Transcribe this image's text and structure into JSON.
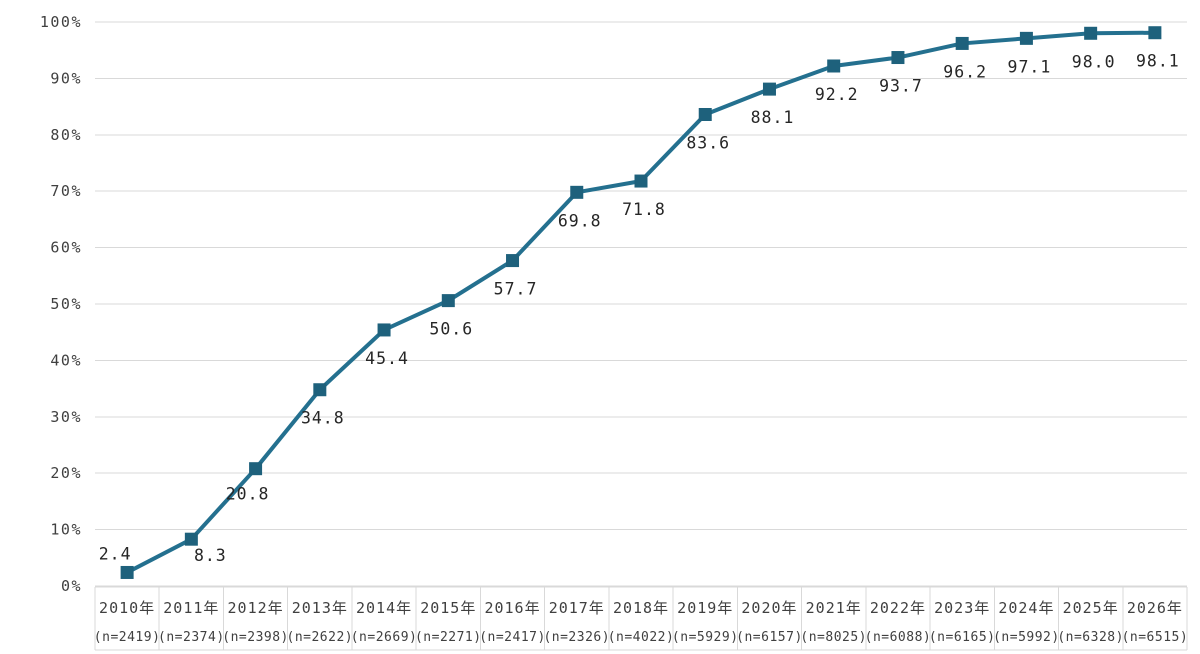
{
  "chart_data": {
    "type": "line",
    "title": "",
    "categories": [
      "2010年",
      "2011年",
      "2012年",
      "2013年",
      "2014年",
      "2015年",
      "2016年",
      "2017年",
      "2018年",
      "2019年",
      "2020年",
      "2021年",
      "2022年",
      "2023年",
      "2024年",
      "2025年",
      "2026年"
    ],
    "sample_sizes": [
      "(n=2419)",
      "(n=2374)",
      "(n=2398)",
      "(n=2622)",
      "(n=2669)",
      "(n=2271)",
      "(n=2417)",
      "(n=2326)",
      "(n=4022)",
      "(n=5929)",
      "(n=6157)",
      "(n=8025)",
      "(n=6088)",
      "(n=6165)",
      "(n=5992)",
      "(n=6328)",
      "(n=6515)"
    ],
    "values": [
      2.4,
      8.3,
      20.8,
      34.8,
      45.4,
      50.6,
      57.7,
      69.8,
      71.8,
      83.6,
      88.1,
      92.2,
      93.7,
      96.2,
      97.1,
      98.0,
      98.1
    ],
    "value_decimals": 1,
    "yticks": [
      "0%",
      "10%",
      "20%",
      "30%",
      "40%",
      "50%",
      "60%",
      "70%",
      "80%",
      "90%",
      "100%"
    ],
    "ylim": [
      0,
      100
    ],
    "ytick_step": 10,
    "grid": "horizontal",
    "legend": "none",
    "xlabel": "",
    "ylabel": "",
    "line_color": "#24708F",
    "marker_color": "#1E617C",
    "marker": "square",
    "gridline_color": "#D9D9D9",
    "axis_table_border_color": "#D9D9D9",
    "axis_text_color": "#404040",
    "data_label_color": "#262626"
  }
}
